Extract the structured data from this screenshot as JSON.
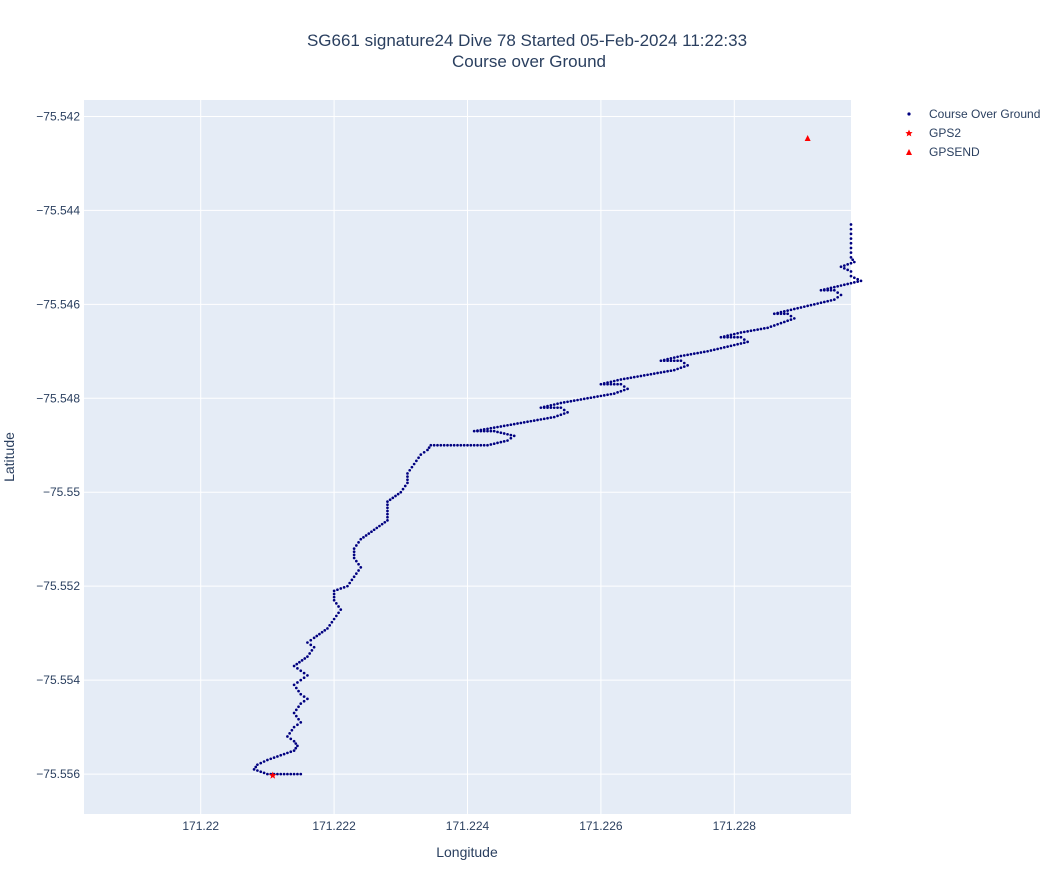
{
  "chart_data": {
    "type": "scatter",
    "title_lines": [
      "SG661 signature24 Dive 78 Started 05-Feb-2024 11:22:33",
      "Course over Ground"
    ],
    "xlabel": "Longitude",
    "ylabel": "Latitude",
    "xlim": [
      171.21825,
      171.22975
    ],
    "ylim": [
      -75.55685,
      -75.54165
    ],
    "x_ticks": [
      171.22,
      171.222,
      171.224,
      171.226,
      171.228
    ],
    "x_tick_labels": [
      "171.22",
      "171.222",
      "171.224",
      "171.226",
      "171.228"
    ],
    "y_ticks": [
      -75.542,
      -75.544,
      -75.546,
      -75.548,
      -75.55,
      -75.552,
      -75.554,
      -75.556
    ],
    "y_tick_labels": [
      "−75.542",
      "−75.544",
      "−75.546",
      "−75.548",
      "−75.55",
      "−75.552",
      "−75.554",
      "−75.556"
    ],
    "grid": true,
    "legend_position": "right",
    "colors": {
      "plot_bg": "#e5ecf6",
      "grid": "#ffffff",
      "course": "#000080",
      "gps": "#ff0000"
    },
    "series": [
      {
        "name": "Course Over Ground",
        "marker": "dot",
        "color": "#000080",
        "points": [
          [
            171.2215,
            -75.556
          ],
          [
            171.2212,
            -75.556
          ],
          [
            171.221,
            -75.556
          ],
          [
            171.2208,
            -75.5559
          ],
          [
            171.22085,
            -75.5558
          ],
          [
            171.221,
            -75.5557
          ],
          [
            171.2212,
            -75.5556
          ],
          [
            171.2214,
            -75.5555
          ],
          [
            171.22145,
            -75.5554
          ],
          [
            171.2214,
            -75.5553
          ],
          [
            171.2213,
            -75.5552
          ],
          [
            171.2214,
            -75.555
          ],
          [
            171.2215,
            -75.5549
          ],
          [
            171.2214,
            -75.5547
          ],
          [
            171.2215,
            -75.5545
          ],
          [
            171.2216,
            -75.5544
          ],
          [
            171.2215,
            -75.5543
          ],
          [
            171.2214,
            -75.5541
          ],
          [
            171.2215,
            -75.554
          ],
          [
            171.2216,
            -75.5539
          ],
          [
            171.2215,
            -75.5538
          ],
          [
            171.2214,
            -75.5537
          ],
          [
            171.2216,
            -75.5535
          ],
          [
            171.2217,
            -75.5533
          ],
          [
            171.2216,
            -75.5532
          ],
          [
            171.2217,
            -75.5531
          ],
          [
            171.2219,
            -75.5529
          ],
          [
            171.222,
            -75.5527
          ],
          [
            171.2221,
            -75.5525
          ],
          [
            171.222,
            -75.5523
          ],
          [
            171.222,
            -75.5521
          ],
          [
            171.2222,
            -75.552
          ],
          [
            171.2223,
            -75.5518
          ],
          [
            171.2224,
            -75.5516
          ],
          [
            171.2223,
            -75.5514
          ],
          [
            171.2223,
            -75.5512
          ],
          [
            171.2224,
            -75.551
          ],
          [
            171.2226,
            -75.5508
          ],
          [
            171.2228,
            -75.5506
          ],
          [
            171.2228,
            -75.5504
          ],
          [
            171.2228,
            -75.5502
          ],
          [
            171.223,
            -75.55
          ],
          [
            171.2231,
            -75.5498
          ],
          [
            171.2231,
            -75.5496
          ],
          [
            171.2232,
            -75.5494
          ],
          [
            171.2233,
            -75.5492
          ],
          [
            171.2234,
            -75.5491
          ],
          [
            171.22345,
            -75.549
          ],
          [
            171.2237,
            -75.549
          ],
          [
            171.224,
            -75.549
          ],
          [
            171.2243,
            -75.549
          ],
          [
            171.2246,
            -75.5489
          ],
          [
            171.2247,
            -75.5488
          ],
          [
            171.2244,
            -75.5487
          ],
          [
            171.2241,
            -75.5487
          ],
          [
            171.2245,
            -75.5486
          ],
          [
            171.2249,
            -75.5485
          ],
          [
            171.2253,
            -75.5484
          ],
          [
            171.2255,
            -75.5483
          ],
          [
            171.2254,
            -75.5482
          ],
          [
            171.2251,
            -75.5482
          ],
          [
            171.2254,
            -75.5481
          ],
          [
            171.2258,
            -75.548
          ],
          [
            171.2262,
            -75.5479
          ],
          [
            171.2264,
            -75.5478
          ],
          [
            171.2263,
            -75.5477
          ],
          [
            171.226,
            -75.5477
          ],
          [
            171.2263,
            -75.5476
          ],
          [
            171.2267,
            -75.5475
          ],
          [
            171.2271,
            -75.5474
          ],
          [
            171.2273,
            -75.5473
          ],
          [
            171.2272,
            -75.5472
          ],
          [
            171.2269,
            -75.5472
          ],
          [
            171.2272,
            -75.5471
          ],
          [
            171.2276,
            -75.547
          ],
          [
            171.2279,
            -75.5469
          ],
          [
            171.2282,
            -75.5468
          ],
          [
            171.2281,
            -75.5467
          ],
          [
            171.2278,
            -75.5467
          ],
          [
            171.2281,
            -75.5466
          ],
          [
            171.2285,
            -75.5465
          ],
          [
            171.2287,
            -75.5464
          ],
          [
            171.2289,
            -75.5463
          ],
          [
            171.2288,
            -75.5462
          ],
          [
            171.2286,
            -75.5462
          ],
          [
            171.2289,
            -75.5461
          ],
          [
            171.2292,
            -75.546
          ],
          [
            171.2295,
            -75.5459
          ],
          [
            171.2296,
            -75.5458
          ],
          [
            171.2295,
            -75.5457
          ],
          [
            171.2293,
            -75.5457
          ],
          [
            171.2296,
            -75.5456
          ],
          [
            171.2299,
            -75.5455
          ],
          [
            171.22975,
            -75.5454
          ],
          [
            171.22975,
            -75.5453
          ],
          [
            171.2296,
            -75.5452
          ],
          [
            171.2298,
            -75.5451
          ],
          [
            171.22975,
            -75.545
          ],
          [
            171.22975,
            -75.5449
          ],
          [
            171.22975,
            -75.5448
          ],
          [
            171.22975,
            -75.5447
          ],
          [
            171.22975,
            -75.5446
          ],
          [
            171.22975,
            -75.5445
          ],
          [
            171.22975,
            -75.5444
          ],
          [
            171.22975,
            -75.5443
          ]
        ]
      },
      {
        "name": "GPS2",
        "marker": "star",
        "color": "#ff0000",
        "points": [
          [
            171.22108,
            -75.55603
          ]
        ]
      },
      {
        "name": "GPSEND",
        "marker": "triangle-up",
        "color": "#ff0000",
        "points": [
          [
            171.2291,
            -75.54247
          ]
        ]
      }
    ]
  }
}
